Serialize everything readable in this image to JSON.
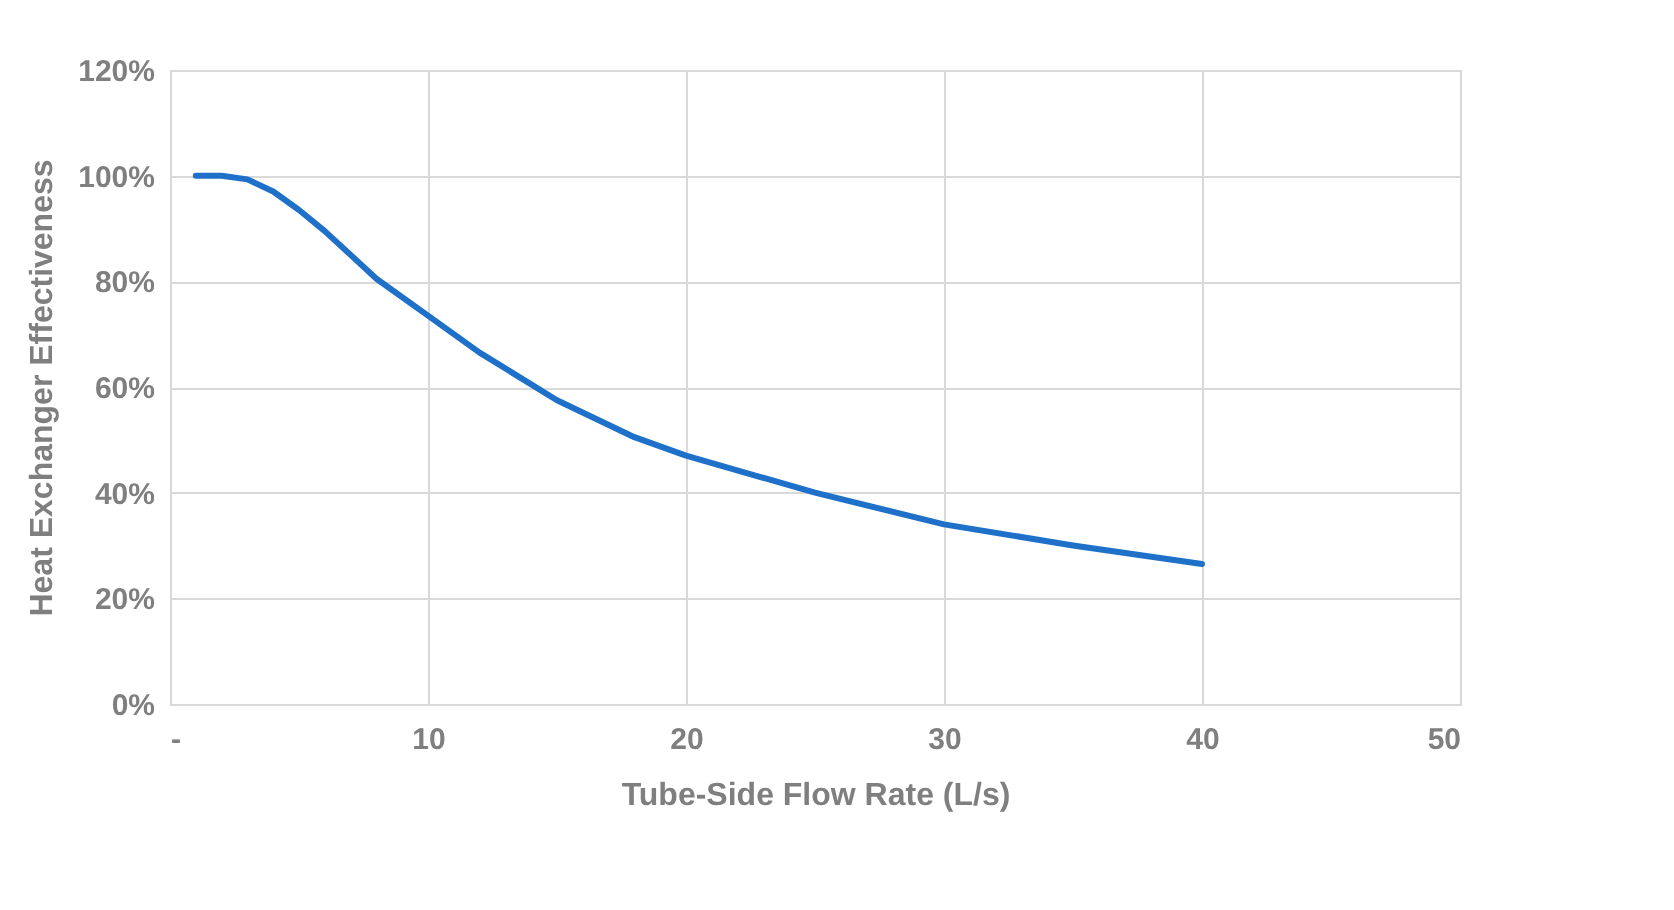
{
  "chart_data": {
    "type": "line",
    "xlabel": "Tube-Side Flow Rate (L/s)",
    "ylabel": "Heat Exchanger Effectiveness",
    "series": [
      {
        "color": "#1f70c8",
        "x": [
          1,
          2,
          3,
          4,
          5,
          6,
          7,
          8,
          10,
          12,
          15,
          18,
          20,
          25,
          30,
          35,
          40
        ],
        "values": [
          100,
          100,
          99.3,
          97,
          93.5,
          89.5,
          85,
          80.5,
          73.5,
          66.5,
          57.5,
          50.5,
          47,
          40,
          34,
          30,
          26.5
        ]
      }
    ],
    "xlim": [
      0,
      50
    ],
    "xticks": [
      {
        "value": 0,
        "label": "-"
      },
      10,
      20,
      30,
      40,
      50
    ],
    "ylim": [
      0,
      120
    ],
    "yticks": [
      {
        "value": 0,
        "label": "0%"
      },
      {
        "value": 20,
        "label": "20%"
      },
      {
        "value": 40,
        "label": "40%"
      },
      {
        "value": 60,
        "label": "60%"
      },
      {
        "value": 80,
        "label": "80%"
      },
      {
        "value": 100,
        "label": "100%"
      },
      {
        "value": 120,
        "label": "120%"
      }
    ],
    "grid": true,
    "marker": "none",
    "line_style": "solid",
    "legend": false
  }
}
